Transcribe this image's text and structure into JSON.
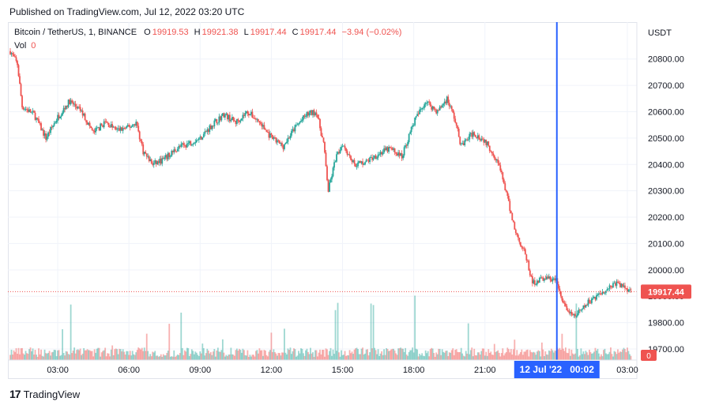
{
  "header": {
    "published": "Published on TradingView.com, Jul 12, 2022 03:20 UTC"
  },
  "legend": {
    "symbol": "Bitcoin / TetherUS, 1, BINANCE",
    "open_label": "O",
    "open": "19919.53",
    "high_label": "H",
    "high": "19921.38",
    "low_label": "L",
    "low": "19917.44",
    "close_label": "C",
    "close": "19917.44",
    "change": "−3.94 (−0.02%)",
    "vol_label": "Vol",
    "vol_value": "0"
  },
  "colors": {
    "up": "#26a69a",
    "down": "#ef5350",
    "crosshair": "#2962ff",
    "grid": "#f0f3fa"
  },
  "footer": {
    "brand": "TradingView"
  },
  "chart_data": {
    "type": "candlestick",
    "currency_label": "USDT",
    "y_ticks": [
      "20800.00",
      "20700.00",
      "20600.00",
      "20500.00",
      "20400.00",
      "20300.00",
      "20200.00",
      "20100.00",
      "20000.00",
      "19900.00",
      "19800.00",
      "19700.00"
    ],
    "y_tick_values": [
      20800,
      20700,
      20600,
      20500,
      20400,
      20300,
      20200,
      20100,
      20000,
      19900,
      19800,
      19700
    ],
    "x_ticks": [
      "03:00",
      "06:00",
      "09:00",
      "12:00",
      "15:00",
      "18:00",
      "21:00",
      "03:00"
    ],
    "x_tick_hours": [
      3,
      6,
      9,
      12,
      15,
      18,
      21,
      27
    ],
    "ylim": [
      19670,
      20880
    ],
    "xlim_hours": [
      0.9,
      27.4
    ],
    "last_price": "19917.44",
    "last_volume": "0",
    "crosshair_label": "12 Jul '22   00:02",
    "crosshair_hour": 24.03,
    "price_path": [
      [
        1.0,
        20830
      ],
      [
        1.3,
        20780
      ],
      [
        1.5,
        20620
      ],
      [
        2.0,
        20590
      ],
      [
        2.5,
        20500
      ],
      [
        3.0,
        20580
      ],
      [
        3.5,
        20640
      ],
      [
        4.0,
        20600
      ],
      [
        4.5,
        20520
      ],
      [
        5.0,
        20560
      ],
      [
        5.5,
        20530
      ],
      [
        6.0,
        20540
      ],
      [
        6.3,
        20560
      ],
      [
        6.6,
        20450
      ],
      [
        7.0,
        20400
      ],
      [
        7.5,
        20420
      ],
      [
        8.0,
        20460
      ],
      [
        8.5,
        20480
      ],
      [
        9.0,
        20500
      ],
      [
        9.5,
        20550
      ],
      [
        10.0,
        20590
      ],
      [
        10.5,
        20560
      ],
      [
        11.0,
        20600
      ],
      [
        11.5,
        20560
      ],
      [
        12.0,
        20500
      ],
      [
        12.5,
        20470
      ],
      [
        13.0,
        20540
      ],
      [
        13.5,
        20590
      ],
      [
        13.9,
        20600
      ],
      [
        14.2,
        20480
      ],
      [
        14.4,
        20300
      ],
      [
        14.7,
        20420
      ],
      [
        15.0,
        20480
      ],
      [
        15.5,
        20400
      ],
      [
        16.0,
        20410
      ],
      [
        16.5,
        20440
      ],
      [
        17.0,
        20460
      ],
      [
        17.5,
        20430
      ],
      [
        18.0,
        20560
      ],
      [
        18.5,
        20640
      ],
      [
        19.0,
        20600
      ],
      [
        19.4,
        20650
      ],
      [
        19.7,
        20580
      ],
      [
        20.0,
        20470
      ],
      [
        20.5,
        20520
      ],
      [
        21.0,
        20490
      ],
      [
        21.5,
        20420
      ],
      [
        21.8,
        20330
      ],
      [
        22.0,
        20250
      ],
      [
        22.3,
        20140
      ],
      [
        22.7,
        20060
      ],
      [
        23.0,
        19950
      ],
      [
        23.5,
        19970
      ],
      [
        24.0,
        19960
      ],
      [
        24.3,
        19870
      ],
      [
        24.7,
        19820
      ],
      [
        25.0,
        19840
      ],
      [
        25.5,
        19890
      ],
      [
        26.0,
        19920
      ],
      [
        26.5,
        19950
      ],
      [
        27.0,
        19930
      ],
      [
        27.2,
        19917
      ]
    ]
  }
}
